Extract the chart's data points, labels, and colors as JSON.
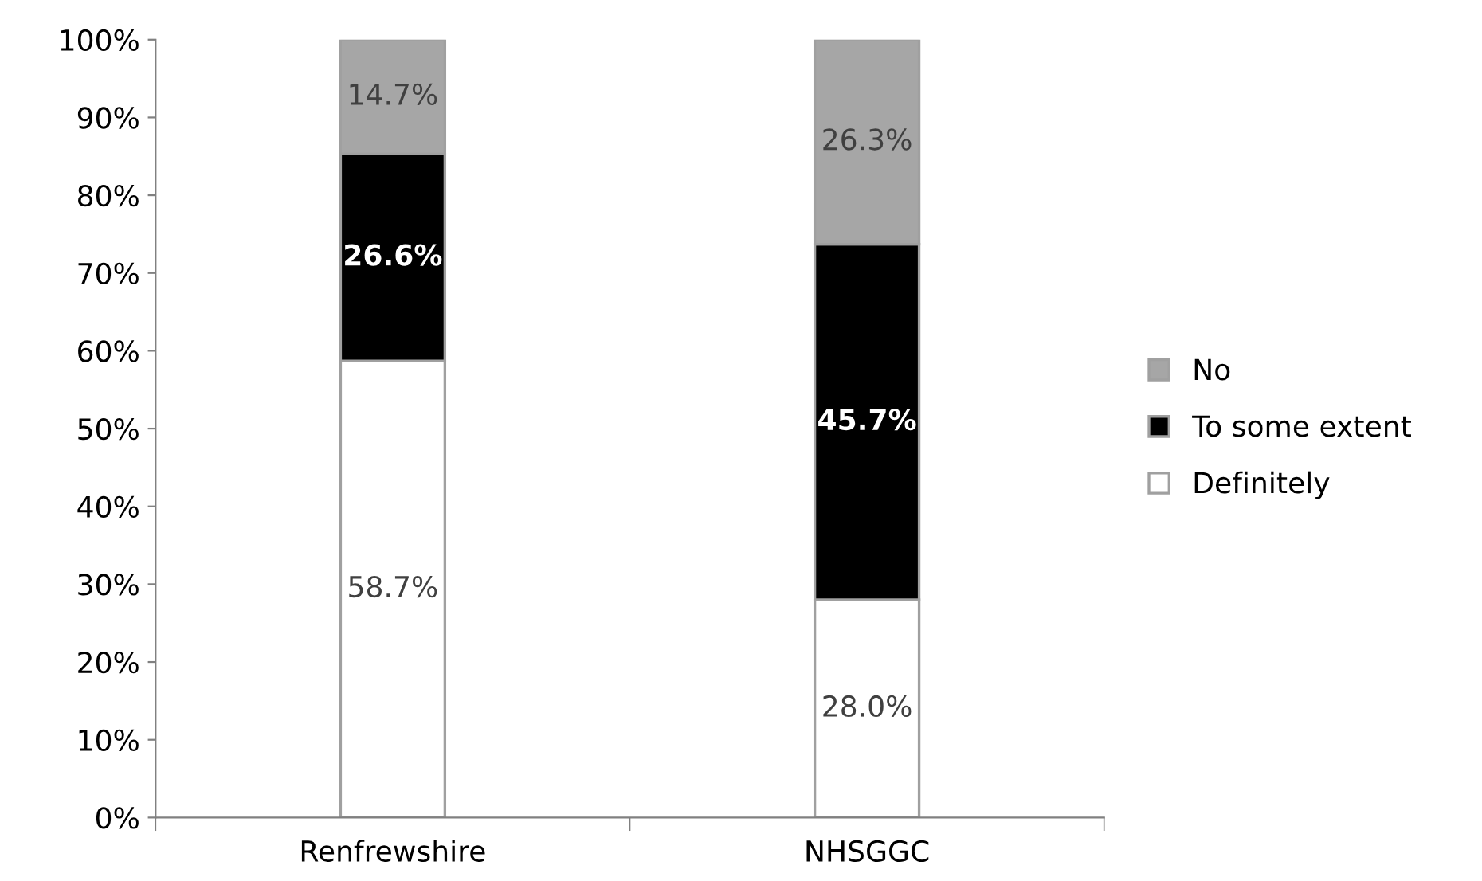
{
  "chart_data": {
    "type": "bar",
    "stacked": true,
    "categories": [
      "Renfrewshire",
      "NHSGGC"
    ],
    "series": [
      {
        "name": "Definitely",
        "color": "#ffffff",
        "values": [
          58.7,
          28.0
        ],
        "value_labels": [
          "58.7%",
          "28.0%"
        ]
      },
      {
        "name": "To some extent",
        "color": "#000000",
        "values": [
          26.6,
          45.7
        ],
        "value_labels": [
          "26.6%",
          "45.7%"
        ]
      },
      {
        "name": "No",
        "color": "#a6a6a6",
        "values": [
          14.7,
          26.3
        ],
        "value_labels": [
          "14.7%",
          "26.3%"
        ]
      }
    ],
    "ylim": [
      0,
      100
    ],
    "yticks": [
      {
        "value": 0,
        "label": "0%"
      },
      {
        "value": 10,
        "label": "10%"
      },
      {
        "value": 20,
        "label": "20%"
      },
      {
        "value": 30,
        "label": "30%"
      },
      {
        "value": 40,
        "label": "40%"
      },
      {
        "value": 50,
        "label": "50%"
      },
      {
        "value": 60,
        "label": "60%"
      },
      {
        "value": 70,
        "label": "70%"
      },
      {
        "value": 80,
        "label": "80%"
      },
      {
        "value": 90,
        "label": "90%"
      },
      {
        "value": 100,
        "label": "100%"
      }
    ],
    "grid": false,
    "legend": "right"
  }
}
